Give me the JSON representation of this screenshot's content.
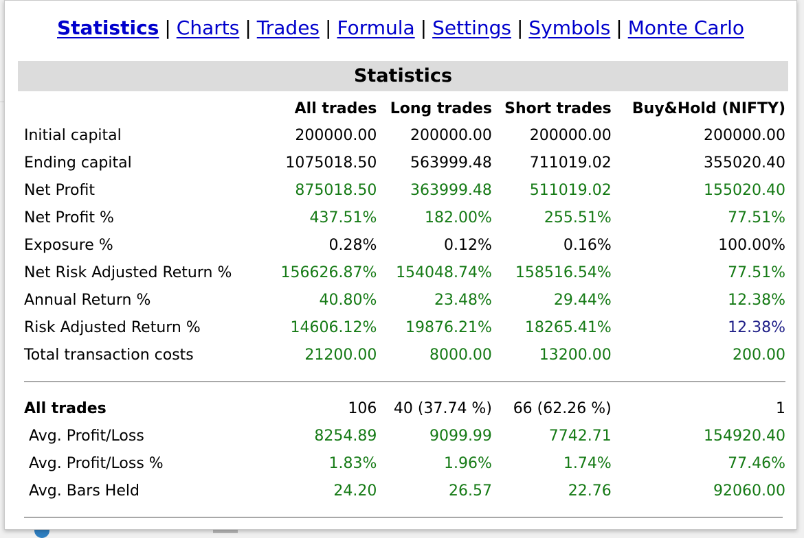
{
  "nav": {
    "items": [
      {
        "label": "Statistics",
        "current": true
      },
      {
        "label": "Charts"
      },
      {
        "label": "Trades"
      },
      {
        "label": "Formula"
      },
      {
        "label": "Settings"
      },
      {
        "label": "Symbols"
      },
      {
        "label": "Monte Carlo"
      }
    ],
    "separator": "|"
  },
  "section_title": "Statistics",
  "columns": [
    "All trades",
    "Long trades",
    "Short trades",
    "Buy&Hold (NIFTY)"
  ],
  "rows": [
    {
      "label": "Initial capital",
      "values": [
        "200000.00",
        "200000.00",
        "200000.00",
        "200000.00"
      ],
      "colors": [
        "black",
        "black",
        "black",
        "black"
      ]
    },
    {
      "label": "Ending capital",
      "values": [
        "1075018.50",
        "563999.48",
        "711019.02",
        "355020.40"
      ],
      "colors": [
        "black",
        "black",
        "black",
        "black"
      ]
    },
    {
      "label": "Net Profit",
      "values": [
        "875018.50",
        "363999.48",
        "511019.02",
        "155020.40"
      ],
      "colors": [
        "green",
        "green",
        "green",
        "green"
      ]
    },
    {
      "label": "Net Profit %",
      "values": [
        "437.51%",
        "182.00%",
        "255.51%",
        "77.51%"
      ],
      "colors": [
        "green",
        "green",
        "green",
        "green"
      ]
    },
    {
      "label": "Exposure %",
      "values": [
        "0.28%",
        "0.12%",
        "0.16%",
        "100.00%"
      ],
      "colors": [
        "black",
        "black",
        "black",
        "black"
      ]
    },
    {
      "label": "Net Risk Adjusted Return %",
      "values": [
        "156626.87%",
        "154048.74%",
        "158516.54%",
        "77.51%"
      ],
      "colors": [
        "green",
        "green",
        "green",
        "green"
      ]
    },
    {
      "label": "Annual Return %",
      "values": [
        "40.80%",
        "23.48%",
        "29.44%",
        "12.38%"
      ],
      "colors": [
        "green",
        "green",
        "green",
        "green"
      ]
    },
    {
      "label": "Risk Adjusted Return %",
      "values": [
        "14606.12%",
        "19876.21%",
        "18265.41%",
        "12.38%"
      ],
      "colors": [
        "green",
        "green",
        "green",
        "navy"
      ]
    },
    {
      "label": "Total transaction costs",
      "values": [
        "21200.00",
        "8000.00",
        "13200.00",
        "200.00"
      ],
      "colors": [
        "green",
        "green",
        "green",
        "green"
      ]
    }
  ],
  "trades_section": {
    "header": {
      "label": "All trades",
      "values": [
        "106",
        "40 (37.74 %)",
        "66 (62.26 %)",
        "1"
      ]
    },
    "rows": [
      {
        "label": "Avg. Profit/Loss",
        "values": [
          "8254.89",
          "9099.99",
          "7742.71",
          "154920.40"
        ]
      },
      {
        "label": "Avg. Profit/Loss %",
        "values": [
          "1.83%",
          "1.96%",
          "1.74%",
          "77.46%"
        ]
      },
      {
        "label": "Avg. Bars Held",
        "values": [
          "24.20",
          "26.57",
          "22.76",
          "92060.00"
        ]
      }
    ]
  },
  "colors": {
    "link": "#0000cc",
    "positive": "#157a15",
    "navy": "#202088",
    "header_bg": "#dcdcdc"
  }
}
